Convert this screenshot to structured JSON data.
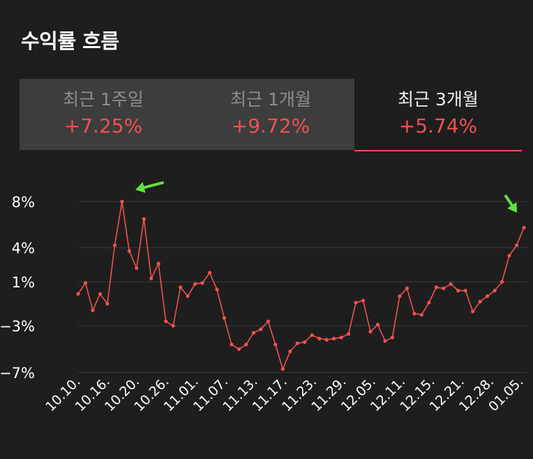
{
  "title": "수익률 흐름",
  "tabs": [
    {
      "label": "최근 1주일",
      "value": "+7.25%",
      "active": false
    },
    {
      "label": "최근 1개월",
      "value": "+9.72%",
      "active": false
    },
    {
      "label": "최근 3개월",
      "value": "+5.74%",
      "active": true
    }
  ],
  "colors": {
    "background": "#1e1e1e",
    "tab_inactive": "#3d3d3d",
    "accent_red": "#f15151",
    "gridline": "#3a3a3a",
    "arrow_green": "#5fe33d"
  },
  "annotations": [
    "green-arrow-peak",
    "green-arrow-latest"
  ],
  "chart_data": {
    "type": "line",
    "title": "",
    "xlabel": "",
    "ylabel": "",
    "y_ticks": [
      {
        "value": 8,
        "label": "8%"
      },
      {
        "value": 4,
        "label": "4%"
      },
      {
        "value": 1,
        "label": "1%"
      },
      {
        "value": -3,
        "label": "−3%"
      },
      {
        "value": -7,
        "label": "−7%"
      }
    ],
    "x_tick_labels": [
      "10.10.",
      "10.16.",
      "10.20.",
      "10.26.",
      "11.01.",
      "11.07.",
      "11.13.",
      "11.17.",
      "11.23.",
      "11.29.",
      "12.05.",
      "12.11.",
      "12.15.",
      "12.21.",
      "12.28.",
      "01.05."
    ],
    "grid": true,
    "series": [
      {
        "values": [
          -0.1,
          0.9,
          -1.6,
          -0.1,
          -1.0,
          4.2,
          8.0,
          3.7,
          2.2,
          6.5,
          1.3,
          2.6,
          -2.6,
          -3.0,
          0.5,
          -0.3,
          0.8,
          0.9,
          1.8,
          0.3,
          -2.3,
          -4.6,
          -5.0,
          -4.6,
          -3.6,
          -3.3,
          -2.6,
          -4.6,
          -6.7,
          -5.2,
          -4.5,
          -4.4,
          -3.8,
          -4.1,
          -4.2,
          -4.1,
          -4.0,
          -3.7,
          -0.9,
          -0.7,
          -3.5,
          -2.9,
          -4.3,
          -4.0,
          -0.3,
          0.4,
          -1.9,
          -2.0,
          -0.9,
          0.5,
          0.4,
          0.8,
          0.2,
          0.2,
          -1.7,
          -0.8,
          -0.3,
          0.2,
          1.0,
          3.3,
          4.2,
          5.74
        ]
      }
    ]
  }
}
